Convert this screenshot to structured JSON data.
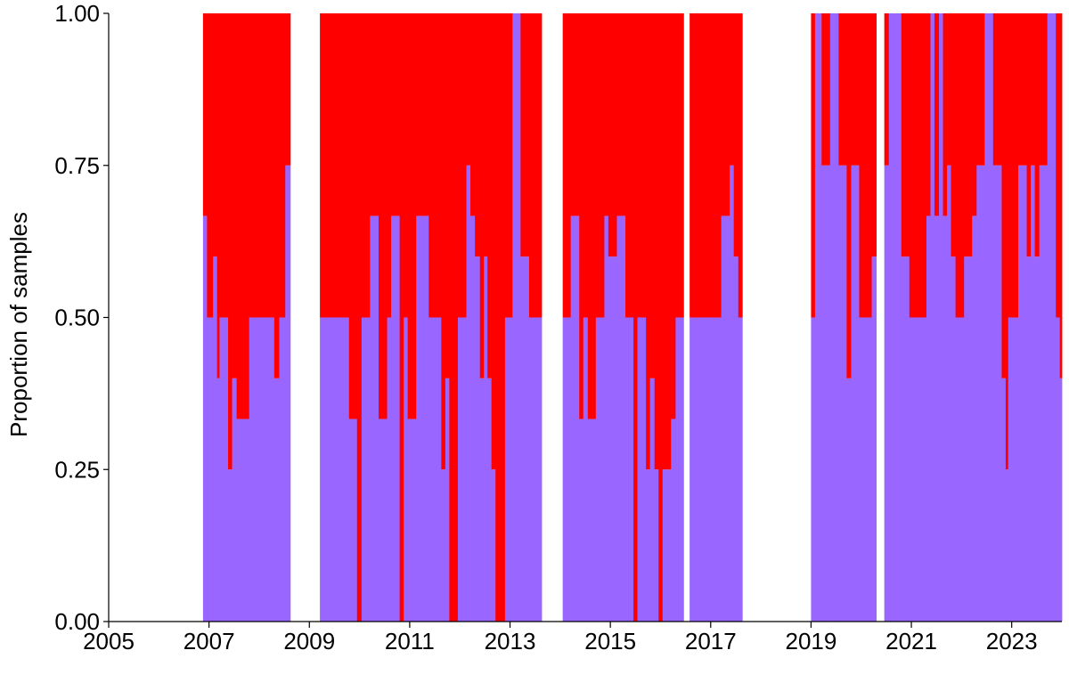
{
  "chart_data": {
    "type": "bar",
    "subtype": "stacked-proportion",
    "title": "",
    "xlabel": "",
    "ylabel": "Proportion of samples",
    "xlim": [
      2005.0,
      2024.0
    ],
    "ylim": [
      0,
      1
    ],
    "x_ticks": [
      "2005",
      "2007",
      "2009",
      "2011",
      "2013",
      "2015",
      "2017",
      "2019",
      "2021",
      "2023"
    ],
    "y_ticks": [
      "0.00",
      "0.25",
      "0.50",
      "0.75",
      "1.00"
    ],
    "legend": false,
    "grid": false,
    "colors": {
      "lower": "#9966FF",
      "upper": "#FF0000"
    },
    "series": [
      {
        "color_key": "lower",
        "points": [
          [
            2006.88,
            2006.96,
            0.667
          ],
          [
            2006.96,
            2007.08,
            0.5
          ],
          [
            2007.08,
            2007.16,
            0.6
          ],
          [
            2007.16,
            2007.21,
            0.4
          ],
          [
            2007.21,
            2007.38,
            0.5
          ],
          [
            2007.38,
            2007.46,
            0.25
          ],
          [
            2007.46,
            2007.55,
            0.4
          ],
          [
            2007.55,
            2007.8,
            0.333
          ],
          [
            2007.8,
            2008.3,
            0.5
          ],
          [
            2008.3,
            2008.4,
            0.4
          ],
          [
            2008.4,
            2008.52,
            0.5
          ],
          [
            2008.52,
            2008.62,
            0.75
          ],
          [
            2009.21,
            2009.79,
            0.5
          ],
          [
            2009.79,
            2009.95,
            0.333
          ],
          [
            2009.95,
            2010.04,
            0.0
          ],
          [
            2010.04,
            2010.21,
            0.5
          ],
          [
            2010.21,
            2010.38,
            0.667
          ],
          [
            2010.38,
            2010.55,
            0.333
          ],
          [
            2010.55,
            2010.63,
            0.5
          ],
          [
            2010.63,
            2010.8,
            0.667
          ],
          [
            2010.8,
            2010.88,
            0.0
          ],
          [
            2010.88,
            2010.96,
            0.5
          ],
          [
            2010.96,
            2011.13,
            0.333
          ],
          [
            2011.13,
            2011.38,
            0.667
          ],
          [
            2011.38,
            2011.63,
            0.5
          ],
          [
            2011.63,
            2011.71,
            0.25
          ],
          [
            2011.71,
            2011.79,
            0.4
          ],
          [
            2011.79,
            2011.96,
            0.0
          ],
          [
            2011.96,
            2012.13,
            0.5
          ],
          [
            2012.13,
            2012.21,
            0.75
          ],
          [
            2012.21,
            2012.3,
            0.667
          ],
          [
            2012.3,
            2012.4,
            0.6
          ],
          [
            2012.4,
            2012.48,
            0.4
          ],
          [
            2012.48,
            2012.55,
            0.6
          ],
          [
            2012.55,
            2012.63,
            0.4
          ],
          [
            2012.63,
            2012.71,
            0.25
          ],
          [
            2012.71,
            2012.9,
            0.0
          ],
          [
            2012.9,
            2013.05,
            0.5
          ],
          [
            2013.05,
            2013.21,
            1.0
          ],
          [
            2013.21,
            2013.38,
            0.6
          ],
          [
            2013.38,
            2013.63,
            0.5
          ],
          [
            2014.05,
            2014.21,
            0.5
          ],
          [
            2014.21,
            2014.38,
            0.667
          ],
          [
            2014.38,
            2014.46,
            0.333
          ],
          [
            2014.46,
            2014.55,
            0.5
          ],
          [
            2014.55,
            2014.71,
            0.333
          ],
          [
            2014.71,
            2014.88,
            0.5
          ],
          [
            2014.88,
            2014.96,
            0.667
          ],
          [
            2014.96,
            2015.13,
            0.6
          ],
          [
            2015.13,
            2015.3,
            0.667
          ],
          [
            2015.3,
            2015.46,
            0.5
          ],
          [
            2015.46,
            2015.54,
            0.0
          ],
          [
            2015.54,
            2015.71,
            0.5
          ],
          [
            2015.71,
            2015.79,
            0.25
          ],
          [
            2015.79,
            2015.88,
            0.4
          ],
          [
            2015.88,
            2015.96,
            0.25
          ],
          [
            2015.96,
            2016.04,
            0.0
          ],
          [
            2016.04,
            2016.21,
            0.25
          ],
          [
            2016.21,
            2016.3,
            0.333
          ],
          [
            2016.3,
            2016.46,
            0.5
          ],
          [
            2016.58,
            2017.21,
            0.5
          ],
          [
            2017.21,
            2017.38,
            0.667
          ],
          [
            2017.38,
            2017.46,
            0.75
          ],
          [
            2017.46,
            2017.55,
            0.6
          ],
          [
            2017.55,
            2017.63,
            0.5
          ],
          [
            2019.0,
            2019.08,
            0.5
          ],
          [
            2019.08,
            2019.21,
            1.0
          ],
          [
            2019.21,
            2019.38,
            0.75
          ],
          [
            2019.38,
            2019.55,
            1.0
          ],
          [
            2019.55,
            2019.71,
            0.75
          ],
          [
            2019.71,
            2019.8,
            0.4
          ],
          [
            2019.8,
            2019.96,
            0.75
          ],
          [
            2019.96,
            2020.21,
            0.5
          ],
          [
            2020.21,
            2020.3,
            0.6
          ],
          [
            2020.46,
            2020.55,
            0.75
          ],
          [
            2020.55,
            2020.8,
            1.0
          ],
          [
            2020.8,
            2020.96,
            0.6
          ],
          [
            2020.96,
            2021.3,
            0.5
          ],
          [
            2021.3,
            2021.38,
            0.667
          ],
          [
            2021.38,
            2021.46,
            1.0
          ],
          [
            2021.46,
            2021.55,
            0.667
          ],
          [
            2021.55,
            2021.63,
            1.0
          ],
          [
            2021.63,
            2021.71,
            0.667
          ],
          [
            2021.71,
            2021.79,
            0.75
          ],
          [
            2021.79,
            2021.88,
            0.6
          ],
          [
            2021.88,
            2022.05,
            0.5
          ],
          [
            2022.05,
            2022.21,
            0.6
          ],
          [
            2022.21,
            2022.3,
            0.667
          ],
          [
            2022.3,
            2022.46,
            0.75
          ],
          [
            2022.46,
            2022.63,
            1.0
          ],
          [
            2022.63,
            2022.8,
            0.75
          ],
          [
            2022.8,
            2022.88,
            0.4
          ],
          [
            2022.88,
            2022.93,
            0.25
          ],
          [
            2022.93,
            2023.13,
            0.5
          ],
          [
            2023.13,
            2023.3,
            0.75
          ],
          [
            2023.3,
            2023.38,
            0.6
          ],
          [
            2023.38,
            2023.46,
            0.75
          ],
          [
            2023.46,
            2023.55,
            0.6
          ],
          [
            2023.55,
            2023.71,
            0.75
          ],
          [
            2023.71,
            2023.88,
            1.0
          ],
          [
            2023.88,
            2023.96,
            0.5
          ],
          [
            2023.96,
            2024.0,
            0.4
          ]
        ]
      },
      {
        "color_key": "upper",
        "note_ref": "upper fills from lower value to 1"
      }
    ]
  }
}
